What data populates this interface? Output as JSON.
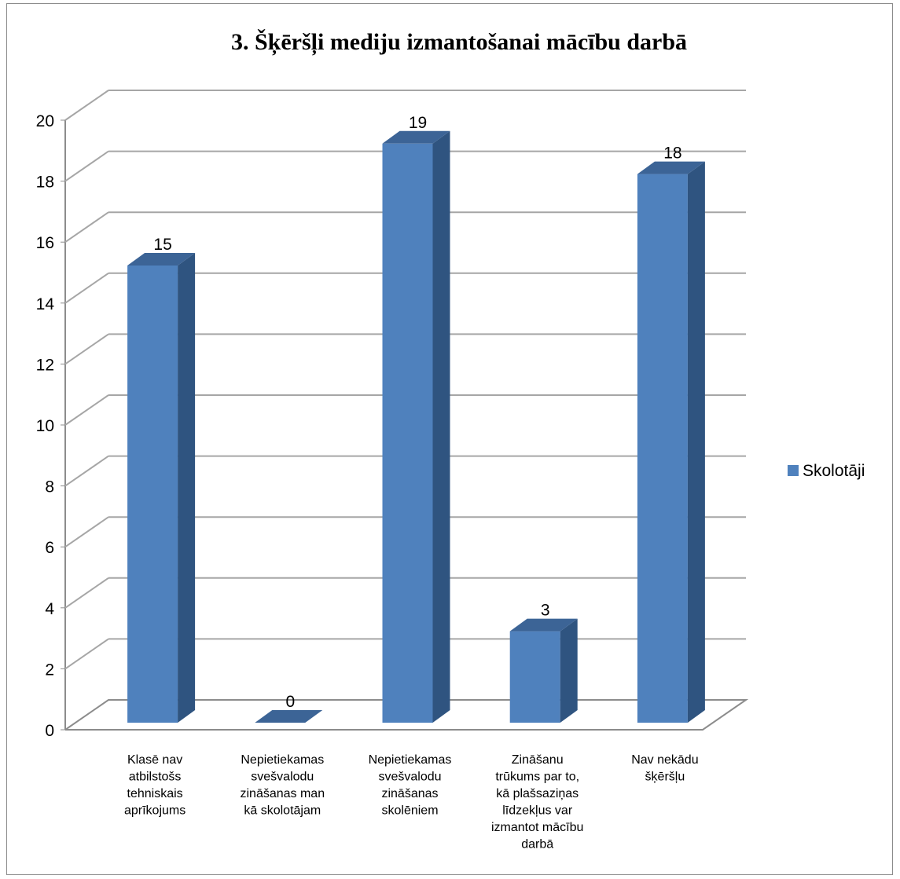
{
  "chart_data": {
    "type": "bar",
    "title": "3. Šķēršļi mediju izmantošanai mācību darbā",
    "categories": [
      [
        "Klasē nav",
        "atbilstošs",
        "tehniskais",
        "aprīkojums"
      ],
      [
        "Nepietiekamas",
        "svešvalodu",
        "zināšanas man",
        "kā skolotājam"
      ],
      [
        "Nepietiekamas",
        "svešvalodu",
        "zināšanas",
        "skolēniem"
      ],
      [
        "Zināšanu",
        "trūkums par to,",
        "kā plašsaziņas",
        "līdzekļus var",
        "izmantot mācību",
        "darbā"
      ],
      [
        "Nav nekādu",
        "šķēršļu"
      ]
    ],
    "series": [
      {
        "name": "Skolotāji",
        "values": [
          15,
          0,
          19,
          3,
          18
        ]
      }
    ],
    "ylim": [
      0,
      20
    ],
    "yticks": [
      "0",
      "2",
      "4",
      "6",
      "8",
      "10",
      "12",
      "14",
      "16",
      "18",
      "20"
    ],
    "grid": true,
    "legend_position": "right",
    "colors": {
      "bar_front": "#4f81bd",
      "bar_side": "#2f5480",
      "bar_top": "#3c6496",
      "gridline": "#a6a6a6",
      "wall": "#8c8c8c"
    }
  }
}
